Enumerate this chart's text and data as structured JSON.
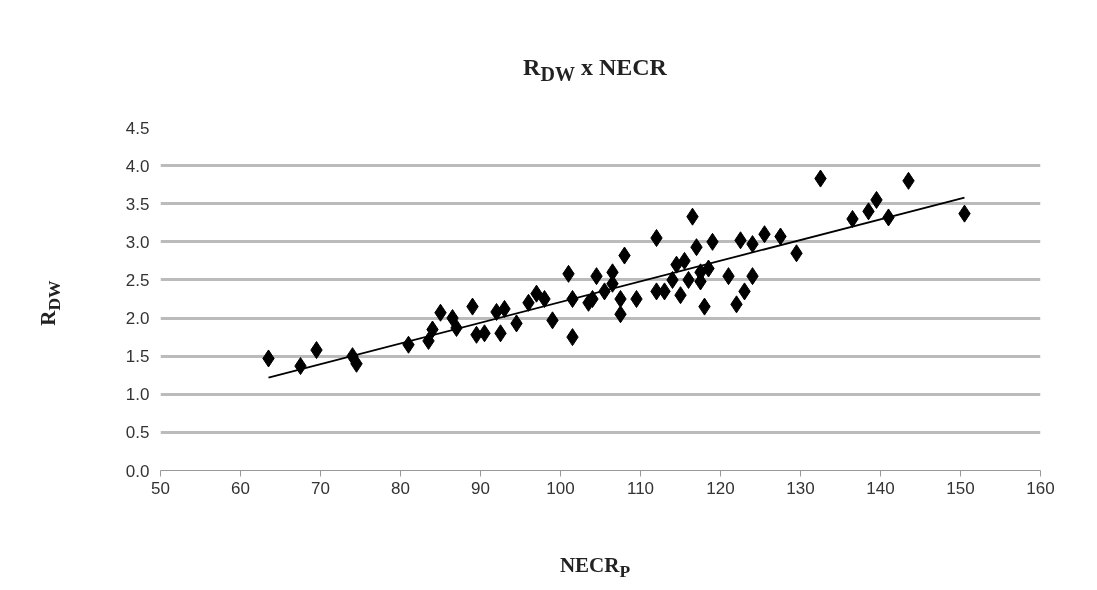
{
  "chart_data": {
    "type": "scatter",
    "title": "R$_{DW}$ x NECR",
    "xlabel": "NECR$_{P}$",
    "ylabel": "R$_{DW}$",
    "xlim": [
      50,
      160
    ],
    "xticks": [
      50,
      60,
      70,
      80,
      90,
      100,
      110,
      120,
      130,
      140,
      150,
      160
    ],
    "ylim": [
      0.0,
      4.5
    ],
    "yticks": [
      {
        "value": 0,
        "label": "0.0"
      },
      {
        "value": 0.5,
        "label": "0.5"
      },
      {
        "value": 1,
        "label": "1.0"
      },
      {
        "value": 1.5,
        "label": "1.5"
      },
      {
        "value": 2,
        "label": "2.0"
      },
      {
        "value": 2.5,
        "label": "2.5"
      },
      {
        "value": 3,
        "label": "3.0"
      },
      {
        "value": 3.5,
        "label": "3.5"
      },
      {
        "value": 4,
        "label": "4.0"
      },
      {
        "value": 4.5,
        "label": "4.5"
      }
    ],
    "grid": "y",
    "series": [
      {
        "marker": "diamond",
        "color": "#000000",
        "x": [
          63.5,
          67.5,
          69.5,
          74,
          74.5,
          81,
          83.5,
          84,
          85,
          86.5,
          87,
          89,
          89.5,
          90.5,
          92,
          92.5,
          93,
          94.5,
          96,
          97,
          98,
          99,
          101,
          101.5,
          101.5,
          103.5,
          104,
          104.5,
          105.5,
          106.5,
          106.5,
          107.5,
          107.5,
          108,
          109.5,
          112,
          112,
          113,
          114,
          114.5,
          115,
          115.5,
          116,
          116.5,
          117,
          117.5,
          117.5,
          118,
          118.5,
          119,
          121,
          122,
          122.5,
          123,
          124,
          124,
          125.5,
          127.5,
          129.5,
          132.5,
          136.5,
          138.5,
          139.5,
          141,
          143.5,
          150.5
        ],
        "values": [
          1.47,
          1.37,
          1.58,
          1.5,
          1.4,
          1.65,
          1.7,
          1.85,
          2.07,
          2.0,
          1.87,
          2.15,
          1.78,
          1.8,
          2.08,
          1.8,
          2.12,
          1.93,
          2.2,
          2.32,
          2.25,
          1.97,
          2.58,
          1.75,
          2.25,
          2.2,
          2.25,
          2.55,
          2.35,
          2.6,
          2.45,
          2.05,
          2.25,
          2.82,
          2.25,
          3.05,
          2.35,
          2.35,
          2.5,
          2.7,
          2.3,
          2.75,
          2.5,
          3.33,
          2.93,
          2.6,
          2.48,
          2.15,
          2.65,
          3.0,
          2.55,
          2.18,
          3.02,
          2.35,
          2.97,
          2.55,
          3.1,
          3.07,
          2.85,
          3.83,
          3.3,
          3.4,
          3.55,
          3.32,
          3.8,
          3.37
        ]
      },
      {
        "type": "line",
        "color": "#000000",
        "x": [
          63.5,
          150.5
        ],
        "values": [
          1.22,
          3.58
        ]
      }
    ]
  }
}
